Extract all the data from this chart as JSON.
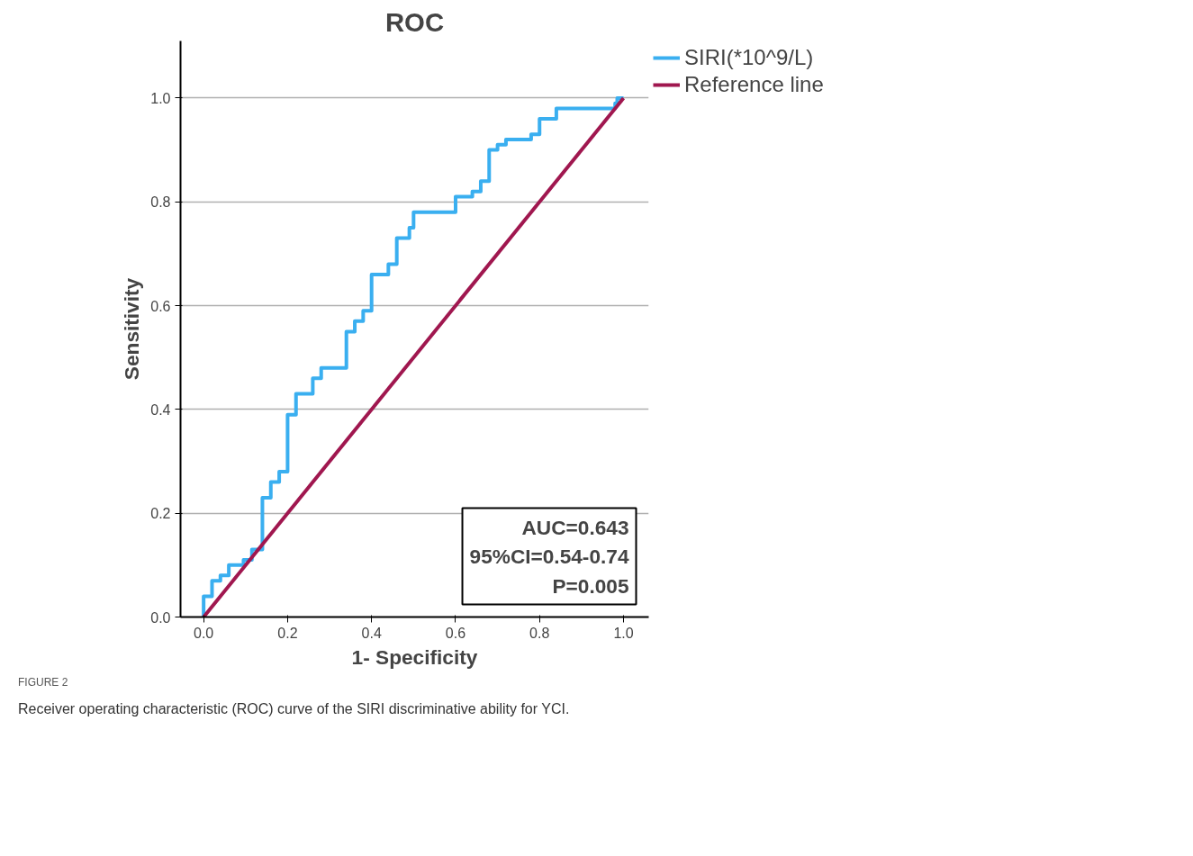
{
  "chart_data": {
    "type": "step",
    "title": "ROC",
    "xlabel": "1- Specificity",
    "ylabel": "Sensitivity",
    "series": [
      {
        "name": "SIRI(*10^9/L)",
        "color": "#3aaff0",
        "x": [
          0,
          0,
          0.02,
          0.04,
          0.06,
          0.095,
          0.115,
          0.14,
          0.16,
          0.18,
          0.2,
          0.22,
          0.26,
          0.28,
          0.34,
          0.36,
          0.38,
          0.4,
          0.44,
          0.46,
          0.49,
          0.5,
          0.6,
          0.64,
          0.66,
          0.68,
          0.7,
          0.72,
          0.78,
          0.8,
          0.84,
          0.98,
          0.985,
          1.0
        ],
        "values": [
          0,
          0.04,
          0.07,
          0.08,
          0.1,
          0.11,
          0.13,
          0.23,
          0.26,
          0.28,
          0.39,
          0.43,
          0.46,
          0.48,
          0.55,
          0.57,
          0.59,
          0.66,
          0.68,
          0.73,
          0.75,
          0.78,
          0.81,
          0.82,
          0.84,
          0.9,
          0.91,
          0.92,
          0.93,
          0.96,
          0.98,
          0.99,
          1.0,
          1.0
        ]
      },
      {
        "name": "Reference line",
        "type": "line",
        "color": "#a0174f",
        "x": [
          0,
          1
        ],
        "values": [
          0,
          1
        ]
      }
    ],
    "xlim": [
      -0.055,
      1.06
    ],
    "ylim": [
      0,
      1.11
    ],
    "xticks": [
      {
        "value": 0,
        "label": "0.0"
      },
      {
        "value": 0.2,
        "label": "0.2"
      },
      {
        "value": 0.4,
        "label": "0.4"
      },
      {
        "value": 0.6,
        "label": "0.6"
      },
      {
        "value": 0.8,
        "label": "0.8"
      },
      {
        "value": 1,
        "label": "1.0"
      }
    ],
    "yticks": [
      {
        "value": 0,
        "label": "0.0"
      },
      {
        "value": 0.2,
        "label": "0.2"
      },
      {
        "value": 0.4,
        "label": "0.4"
      },
      {
        "value": 0.6,
        "label": "0.6"
      },
      {
        "value": 0.8,
        "label": "0.8"
      },
      {
        "value": 1,
        "label": "1.0"
      }
    ],
    "grid": "y",
    "legend": "right",
    "annotations": [
      "AUC=0.643\n95%CI=0.54-0.74\nP=0.005",
      "FIGURE 2",
      "Receiver operating characteristic (ROC) curve of the SIRI discriminative ability for YCI."
    ]
  }
}
